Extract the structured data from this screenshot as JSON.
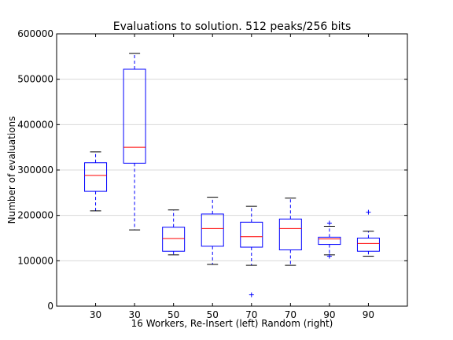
{
  "chart_data": {
    "type": "box",
    "title": "Evaluations to solution. 512 peaks/256 bits",
    "xlabel": "16 Workers, Re-Insert (left)   Random (right)",
    "ylabel": "Number of evaluations",
    "ylim": [
      0,
      600000
    ],
    "yticks": [
      0,
      100000,
      200000,
      300000,
      400000,
      500000,
      600000
    ],
    "ytick_labels": [
      "0",
      "100000",
      "200000",
      "300000",
      "400000",
      "500000",
      "600000"
    ],
    "categories": [
      "30",
      "30",
      "50",
      "50",
      "70",
      "70",
      "90",
      "90"
    ],
    "grid": "horizontal",
    "colors": {
      "box": "#0000ff",
      "median": "#ff0000",
      "whisker": "#0000ff",
      "cap": "#000000",
      "flier": "#0000ff",
      "grid": "#d8d8d8"
    },
    "boxes": [
      {
        "whislo": 210000,
        "q1": 253000,
        "med": 288000,
        "q3": 316000,
        "whishi": 340000,
        "fliers": []
      },
      {
        "whislo": 168000,
        "q1": 315000,
        "med": 350000,
        "q3": 522000,
        "whishi": 557000,
        "fliers": []
      },
      {
        "whislo": 113000,
        "q1": 121000,
        "med": 149000,
        "q3": 174000,
        "whishi": 212000,
        "fliers": []
      },
      {
        "whislo": 92000,
        "q1": 132000,
        "med": 171000,
        "q3": 203000,
        "whishi": 240000,
        "fliers": []
      },
      {
        "whislo": 90000,
        "q1": 130000,
        "med": 153000,
        "q3": 185000,
        "whishi": 220000,
        "fliers": [
          25000
        ]
      },
      {
        "whislo": 90000,
        "q1": 124000,
        "med": 171000,
        "q3": 192000,
        "whishi": 238000,
        "fliers": []
      },
      {
        "whislo": 113000,
        "q1": 136000,
        "med": 148000,
        "q3": 152000,
        "whishi": 176000,
        "fliers": [
          110000,
          183000
        ]
      },
      {
        "whislo": 110000,
        "q1": 121000,
        "med": 138000,
        "q3": 150000,
        "whishi": 165000,
        "fliers": [
          207000
        ]
      }
    ]
  }
}
